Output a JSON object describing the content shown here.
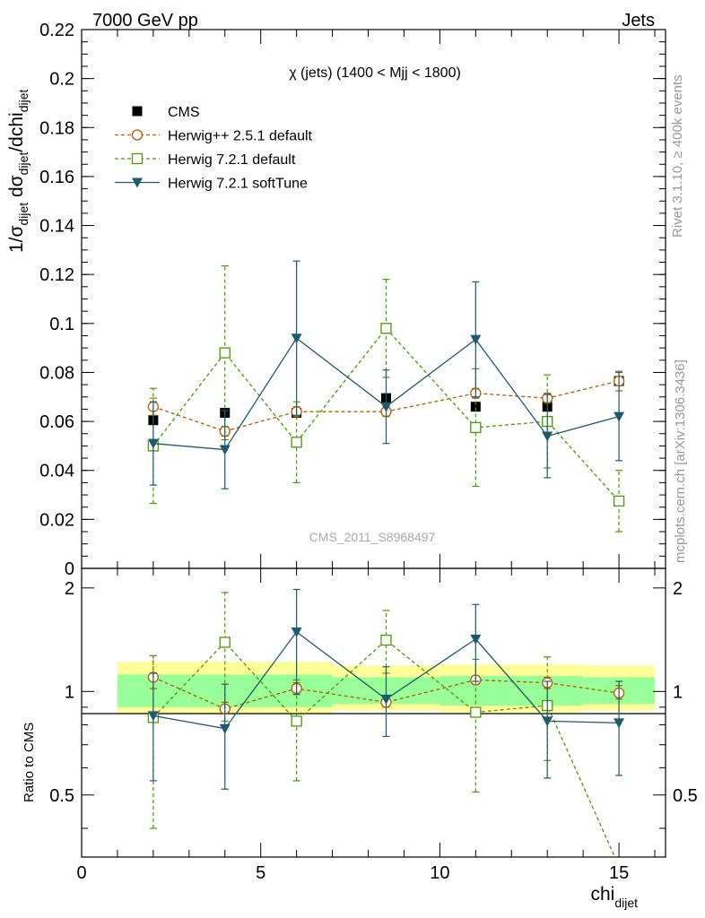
{
  "header": {
    "left": "7000 GeV pp",
    "right": "Jets"
  },
  "side_labels": {
    "rivet": "Rivet 3.1.10, ≥ 400k events",
    "mcplots": "mcplots.cern.ch [arXiv:1306.3436]"
  },
  "watermark": "CMS_2011_S8968497",
  "colors": {
    "cms": "#000000",
    "herwigpp": "#b35c00",
    "herwig721": "#4a9a00",
    "softtune": "#1d5a6e",
    "band_inner": "#99ff99",
    "band_outer": "#ffff99"
  },
  "chart_data": [
    {
      "type": "line",
      "title": "χ (jets) (1400 < Mjj < 1800)",
      "ylabel": "1/σdijet dσdijet/dchidijet",
      "ylabel_parts": {
        "a": "1/σ",
        "b": "dijet",
        "c": " dσ",
        "d": "dijet",
        "e": "/dchi",
        "f": "dijet"
      },
      "ylim": [
        0,
        0.22
      ],
      "yticks": [
        "0",
        "0.02",
        "0.04",
        "0.06",
        "0.08",
        "0.1",
        "0.12",
        "0.14",
        "0.16",
        "0.18",
        "0.2",
        "0.22"
      ],
      "xlim": [
        0,
        16.3
      ],
      "legend_position": "top-left",
      "series": [
        {
          "name": "CMS",
          "marker": "square-filled",
          "line": "none",
          "x": [
            2,
            4,
            6,
            8.5,
            11,
            13,
            15
          ],
          "y": [
            0.0605,
            0.0635,
            0.0635,
            0.0695,
            0.066,
            0.066,
            0.0765
          ],
          "err": [
            0.001,
            0.001,
            0.001,
            0.001,
            0.001,
            0.001,
            0.001
          ]
        },
        {
          "name": "Herwig++ 2.5.1 default",
          "marker": "circle-open",
          "line": "dashed",
          "x": [
            2,
            4,
            6,
            8.5,
            11,
            13,
            15
          ],
          "y": [
            0.066,
            0.056,
            0.064,
            0.064,
            0.0715,
            0.0695,
            0.0765
          ],
          "err": [
            0.0035,
            0.002,
            0.002,
            0.002,
            0.002,
            0.002,
            0.004
          ]
        },
        {
          "name": "Herwig 7.2.1 default",
          "marker": "square-open",
          "line": "dashed",
          "x": [
            2,
            4,
            6,
            8.5,
            11,
            13,
            15
          ],
          "y": [
            0.05,
            0.088,
            0.0515,
            0.098,
            0.0575,
            0.06,
            0.0275
          ],
          "err": [
            0.0235,
            0.0355,
            0.0165,
            0.02,
            0.024,
            0.019,
            0.0125
          ]
        },
        {
          "name": "Herwig 7.2.1 softTune",
          "marker": "triangle-down",
          "line": "solid",
          "x": [
            2,
            4,
            6,
            8.5,
            11,
            13,
            15
          ],
          "y": [
            0.051,
            0.0485,
            0.094,
            0.066,
            0.0935,
            0.054,
            0.062
          ],
          "err": [
            0.017,
            0.016,
            0.0315,
            0.015,
            0.0235,
            0.017,
            0.018
          ]
        }
      ]
    },
    {
      "type": "line",
      "ylabel": "Ratio to CMS",
      "ylim": [
        0.33,
        2.28
      ],
      "yticks": [
        "0.5",
        "1",
        "2"
      ],
      "xlabel": "chidijet",
      "xlabel_parts": {
        "main": "chi",
        "sub": "dijet"
      },
      "xlim": [
        0,
        16.3
      ],
      "xticks": [
        "0",
        "5",
        "10",
        "15"
      ],
      "bands": [
        {
          "x": [
            1,
            3
          ],
          "inner": [
            0.9,
            1.12
          ],
          "outer": [
            0.86,
            1.22
          ]
        },
        {
          "x": [
            3,
            5
          ],
          "inner": [
            0.9,
            1.12
          ],
          "outer": [
            0.86,
            1.22
          ]
        },
        {
          "x": [
            5,
            7
          ],
          "inner": [
            0.9,
            1.12
          ],
          "outer": [
            0.86,
            1.22
          ]
        },
        {
          "x": [
            7,
            10
          ],
          "inner": [
            0.92,
            1.1
          ],
          "outer": [
            0.88,
            1.19
          ]
        },
        {
          "x": [
            10,
            12
          ],
          "inner": [
            0.91,
            1.11
          ],
          "outer": [
            0.87,
            1.2
          ]
        },
        {
          "x": [
            12,
            14
          ],
          "inner": [
            0.91,
            1.11
          ],
          "outer": [
            0.87,
            1.2
          ]
        },
        {
          "x": [
            14,
            16
          ],
          "inner": [
            0.92,
            1.1
          ],
          "outer": [
            0.88,
            1.19
          ]
        }
      ],
      "series": [
        {
          "name": "Herwig++ 2.5.1 default",
          "x": [
            2,
            4,
            6,
            8.5,
            11,
            13,
            15
          ],
          "y": [
            1.1,
            0.89,
            1.02,
            0.93,
            1.08,
            1.06,
            0.99
          ],
          "lo": [
            1.02,
            0.86,
            0.99,
            0.9,
            1.05,
            1.02,
            0.95
          ],
          "hi": [
            1.27,
            0.93,
            1.06,
            0.97,
            1.11,
            1.1,
            1.04
          ]
        },
        {
          "name": "Herwig 7.2.1 default",
          "x": [
            2,
            4,
            6,
            8.5,
            11,
            13,
            15
          ],
          "y": [
            0.84,
            1.39,
            0.82,
            1.41,
            0.87,
            0.91,
            0.31
          ],
          "lo": [
            0.4,
            0.82,
            0.55,
            1.13,
            0.51,
            0.63,
            0.31
          ],
          "hi": [
            1.27,
            1.94,
            1.08,
            1.72,
            1.24,
            1.26,
            0.31
          ]
        },
        {
          "name": "Herwig 7.2.1 softTune",
          "x": [
            2,
            4,
            6,
            8.5,
            11,
            13,
            15
          ],
          "y": [
            0.85,
            0.78,
            1.49,
            0.95,
            1.42,
            0.82,
            0.81
          ],
          "lo": [
            0.55,
            0.52,
            0.98,
            0.74,
            1.07,
            0.56,
            0.57
          ],
          "hi": [
            1.13,
            1.05,
            1.98,
            1.18,
            1.79,
            1.07,
            1.07
          ]
        }
      ]
    }
  ]
}
